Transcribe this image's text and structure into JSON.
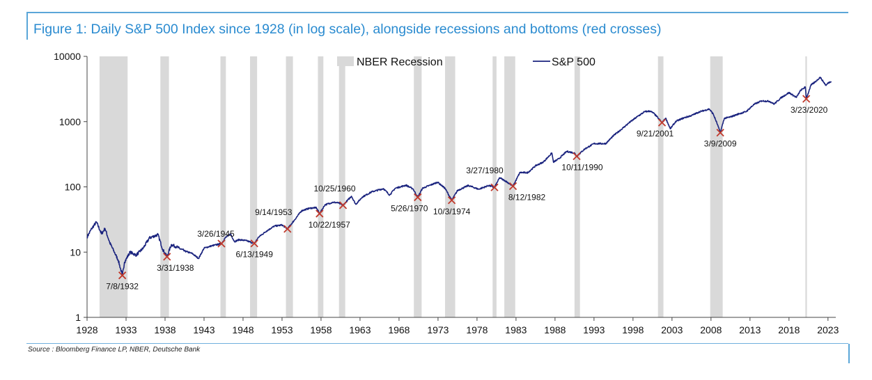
{
  "title": "Figure 1: Daily S&P 500 Index since 1928 (in log scale), alongside recessions and bottoms (red crosses)",
  "source": "Source : Bloomberg Finance LP, NBER, Deutsche Bank",
  "colors": {
    "line": "#1a237e",
    "recession": "#d9d9d9",
    "cross": "#c0392b",
    "title": "#2a8bd0",
    "rule": "#5aa6d8"
  },
  "chart_data": {
    "type": "line",
    "y_scale": "log",
    "ylim": [
      1,
      10000
    ],
    "xlim": [
      1928,
      2024
    ],
    "y_ticks": [
      "1",
      "10",
      "100",
      "1000",
      "10000"
    ],
    "x_ticks": [
      "1928",
      "1933",
      "1938",
      "1943",
      "1948",
      "1953",
      "1958",
      "1963",
      "1968",
      "1973",
      "1978",
      "1983",
      "1988",
      "1993",
      "1998",
      "2003",
      "2008",
      "2013",
      "2018",
      "2023"
    ],
    "legend": [
      "NBER Recession",
      "S&P 500"
    ],
    "legend_position": "top-center",
    "grid": false,
    "recessions": [
      [
        1929.6,
        1933.2
      ],
      [
        1937.4,
        1938.5
      ],
      [
        1945.1,
        1945.8
      ],
      [
        1948.9,
        1949.8
      ],
      [
        1953.5,
        1954.4
      ],
      [
        1957.6,
        1958.3
      ],
      [
        1960.3,
        1961.1
      ],
      [
        1969.9,
        1970.9
      ],
      [
        1973.9,
        1975.2
      ],
      [
        1980.0,
        1980.5
      ],
      [
        1981.5,
        1982.9
      ],
      [
        1990.5,
        1991.2
      ],
      [
        2001.2,
        2001.9
      ],
      [
        2007.9,
        2009.5
      ],
      [
        2020.1,
        2020.3
      ]
    ],
    "bottoms": [
      {
        "label": "7/8/1932",
        "x": 1932.52,
        "y": 4.4
      },
      {
        "label": "3/31/1938",
        "x": 1938.25,
        "y": 8.5
      },
      {
        "label": "3/26/1945",
        "x": 1945.23,
        "y": 13.5
      },
      {
        "label": "6/13/1949",
        "x": 1949.45,
        "y": 13.6
      },
      {
        "label": "9/14/1953",
        "x": 1953.7,
        "y": 22.7
      },
      {
        "label": "10/22/1957",
        "x": 1957.81,
        "y": 38.9
      },
      {
        "label": "10/25/1960",
        "x": 1960.82,
        "y": 52.3
      },
      {
        "label": "5/26/1970",
        "x": 1970.4,
        "y": 69.3
      },
      {
        "label": "10/3/1974",
        "x": 1974.76,
        "y": 62.3
      },
      {
        "label": "3/27/1980",
        "x": 1980.24,
        "y": 98.2
      },
      {
        "label": "8/12/1982",
        "x": 1982.61,
        "y": 102.4
      },
      {
        "label": "10/11/1990",
        "x": 1990.78,
        "y": 295
      },
      {
        "label": "9/21/2001",
        "x": 2001.72,
        "y": 966
      },
      {
        "label": "3/9/2009",
        "x": 2009.19,
        "y": 677
      },
      {
        "label": "3/23/2020",
        "x": 2020.22,
        "y": 2237
      }
    ],
    "series": [
      {
        "name": "S&P 500",
        "x": [
          1928.0,
          1928.6,
          1929.2,
          1929.7,
          1929.85,
          1930.3,
          1930.9,
          1931.5,
          1932.0,
          1932.52,
          1932.8,
          1933.5,
          1934.3,
          1935.2,
          1936.0,
          1937.1,
          1937.7,
          1938.25,
          1938.8,
          1939.5,
          1940.4,
          1941.5,
          1942.3,
          1943.0,
          1944.0,
          1945.23,
          1945.7,
          1946.4,
          1946.9,
          1947.5,
          1948.4,
          1949.45,
          1950.0,
          1951.0,
          1952.0,
          1953.0,
          1953.7,
          1954.5,
          1955.5,
          1956.5,
          1957.4,
          1957.81,
          1958.5,
          1959.5,
          1960.2,
          1960.82,
          1961.9,
          1962.45,
          1963.3,
          1964.5,
          1966.0,
          1966.8,
          1967.5,
          1968.9,
          1969.8,
          1970.4,
          1971.0,
          1972.95,
          1973.9,
          1974.76,
          1975.5,
          1976.9,
          1978.2,
          1979.5,
          1980.24,
          1980.9,
          1981.7,
          1982.61,
          1983.5,
          1984.5,
          1985.5,
          1986.5,
          1987.6,
          1987.8,
          1988.5,
          1989.5,
          1990.5,
          1990.78,
          1991.8,
          1993.0,
          1994.5,
          1995.5,
          1996.5,
          1997.5,
          1998.5,
          1999.5,
          2000.2,
          2000.7,
          2001.2,
          2001.72,
          2002.2,
          2002.78,
          2003.5,
          2004.5,
          2005.5,
          2006.5,
          2007.78,
          2008.3,
          2008.85,
          2009.19,
          2009.7,
          2010.5,
          2011.6,
          2012.5,
          2013.5,
          2014.5,
          2015.5,
          2016.1,
          2017.0,
          2018.0,
          2018.95,
          2019.5,
          2020.1,
          2020.22,
          2020.8,
          2021.5,
          2022.0,
          2022.75,
          2023.0,
          2023.4
        ]
      }
    ]
  }
}
